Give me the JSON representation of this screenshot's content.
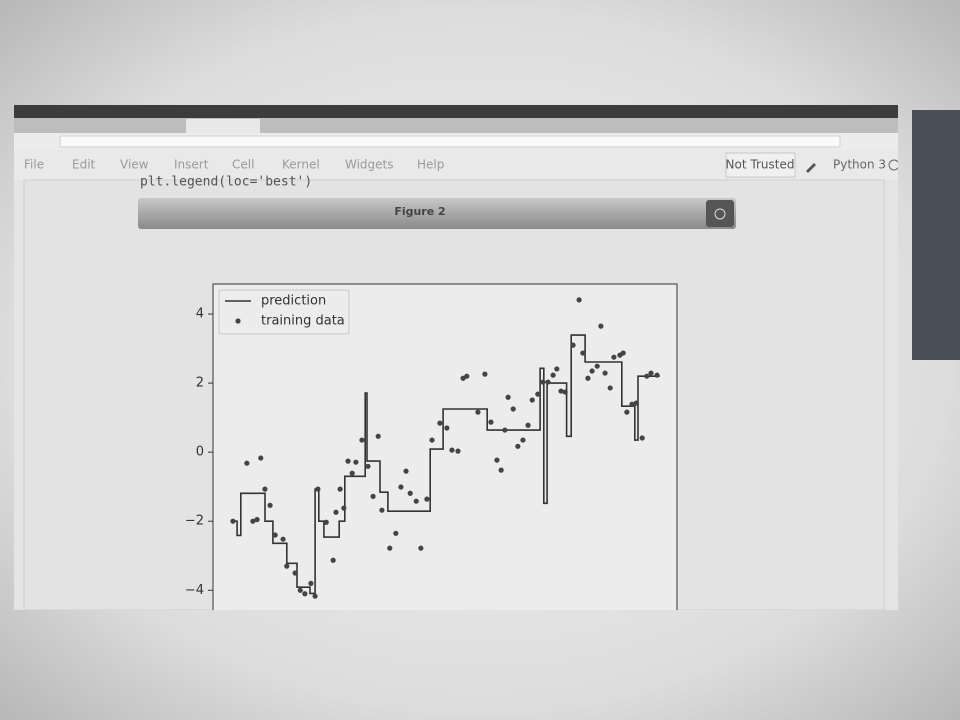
{
  "notebook": {
    "menu": [
      "File",
      "Edit",
      "View",
      "Insert",
      "Cell",
      "Kernel",
      "Widgets",
      "Help"
    ],
    "trust": "Not Trusted",
    "kernel": "Python 3",
    "code_line": "plt.legend(loc='best')",
    "figure_title": "Figure 2"
  },
  "chart_data": {
    "type": "line",
    "xlim": [
      0,
      10
    ],
    "ylim": [
      -4.6,
      4.87
    ],
    "yticks": [
      {
        "value": -4,
        "label": "−4"
      },
      {
        "value": -2,
        "label": "−2"
      },
      0,
      2,
      4
    ],
    "legend": "upper left",
    "series": [
      {
        "name": "prediction",
        "style": "line",
        "color": "#333333",
        "x": [
          0.43,
          0.52,
          0.52,
          0.6,
          0.6,
          1.12,
          1.12,
          1.29,
          1.29,
          1.59,
          1.59,
          1.81,
          1.81,
          2.09,
          2.09,
          2.2,
          2.2,
          2.28,
          2.28,
          2.39,
          2.39,
          2.72,
          2.72,
          2.84,
          2.84,
          3.28,
          3.28,
          3.32,
          3.32,
          3.6,
          3.6,
          3.77,
          3.77,
          4.68,
          4.68,
          4.96,
          4.96,
          5.91,
          5.91,
          7.05,
          7.05,
          7.13,
          7.13,
          7.2,
          7.2,
          7.62,
          7.62,
          7.72,
          7.72,
          8.02,
          8.02,
          8.81,
          8.81,
          9.09,
          9.09,
          9.16,
          9.16,
          9.63
        ],
        "values": [
          -2.0,
          -2.0,
          -2.41,
          -2.41,
          -1.19,
          -1.19,
          -2.0,
          -2.0,
          -2.64,
          -2.64,
          -3.22,
          -3.22,
          -3.91,
          -3.91,
          -4.09,
          -4.09,
          -1.07,
          -1.07,
          -2.0,
          -2.0,
          -2.46,
          -2.46,
          -2.0,
          -2.0,
          -0.7,
          -0.7,
          1.71,
          1.71,
          -0.26,
          -0.26,
          -1.16,
          -1.16,
          -1.71,
          -1.71,
          0.09,
          0.09,
          1.25,
          1.25,
          0.64,
          0.64,
          2.43,
          2.43,
          -1.48,
          -1.48,
          2.0,
          2.0,
          0.46,
          0.46,
          3.39,
          3.39,
          2.61,
          2.61,
          1.33,
          1.33,
          0.35,
          0.35,
          2.2,
          2.2
        ]
      },
      {
        "name": "training data",
        "style": "points",
        "color": "#444444",
        "x": [
          0.43,
          0.73,
          0.86,
          0.95,
          1.03,
          1.12,
          1.23,
          1.34,
          1.51,
          1.59,
          1.77,
          1.88,
          1.98,
          2.11,
          2.2,
          2.26,
          2.44,
          2.59,
          2.65,
          2.74,
          2.82,
          2.91,
          3.0,
          3.08,
          3.21,
          3.34,
          3.45,
          3.56,
          3.64,
          3.81,
          3.94,
          4.05,
          4.16,
          4.25,
          4.38,
          4.48,
          4.61,
          4.72,
          4.89,
          5.04,
          5.15,
          5.28,
          5.39,
          5.47,
          5.71,
          5.86,
          5.99,
          6.12,
          6.21,
          6.29,
          6.36,
          6.47,
          6.57,
          6.68,
          6.79,
          6.88,
          7.0,
          7.11,
          7.22,
          7.33,
          7.41,
          7.5,
          7.59,
          7.76,
          7.89,
          7.97,
          8.08,
          8.17,
          8.28,
          8.36,
          8.45,
          8.56,
          8.64,
          8.77,
          8.84,
          8.92,
          9.03,
          9.12,
          9.25,
          9.35,
          9.44,
          9.57
        ],
        "values": [
          -2.0,
          -0.32,
          -2.0,
          -1.95,
          -0.17,
          -1.07,
          -1.54,
          -2.4,
          -2.52,
          -3.3,
          -3.5,
          -4.0,
          -4.1,
          -3.8,
          -4.17,
          -1.07,
          -2.03,
          -3.13,
          -1.74,
          -1.07,
          -1.62,
          -0.26,
          -0.61,
          -0.29,
          0.35,
          -0.41,
          -1.28,
          0.46,
          -1.68,
          -2.78,
          -2.35,
          -1.01,
          -0.55,
          -1.19,
          -1.42,
          -2.78,
          -1.36,
          0.35,
          0.84,
          0.7,
          0.06,
          0.03,
          2.14,
          2.2,
          1.16,
          2.26,
          0.87,
          -0.23,
          -0.52,
          0.64,
          1.59,
          1.25,
          0.17,
          0.35,
          0.78,
          1.51,
          1.68,
          2.03,
          2.03,
          2.23,
          2.41,
          1.77,
          1.74,
          3.1,
          4.41,
          2.87,
          2.14,
          2.35,
          2.49,
          3.65,
          2.29,
          1.86,
          2.75,
          2.81,
          2.87,
          1.16,
          1.39,
          1.42,
          0.41,
          2.2,
          2.29,
          2.23
        ]
      }
    ]
  }
}
